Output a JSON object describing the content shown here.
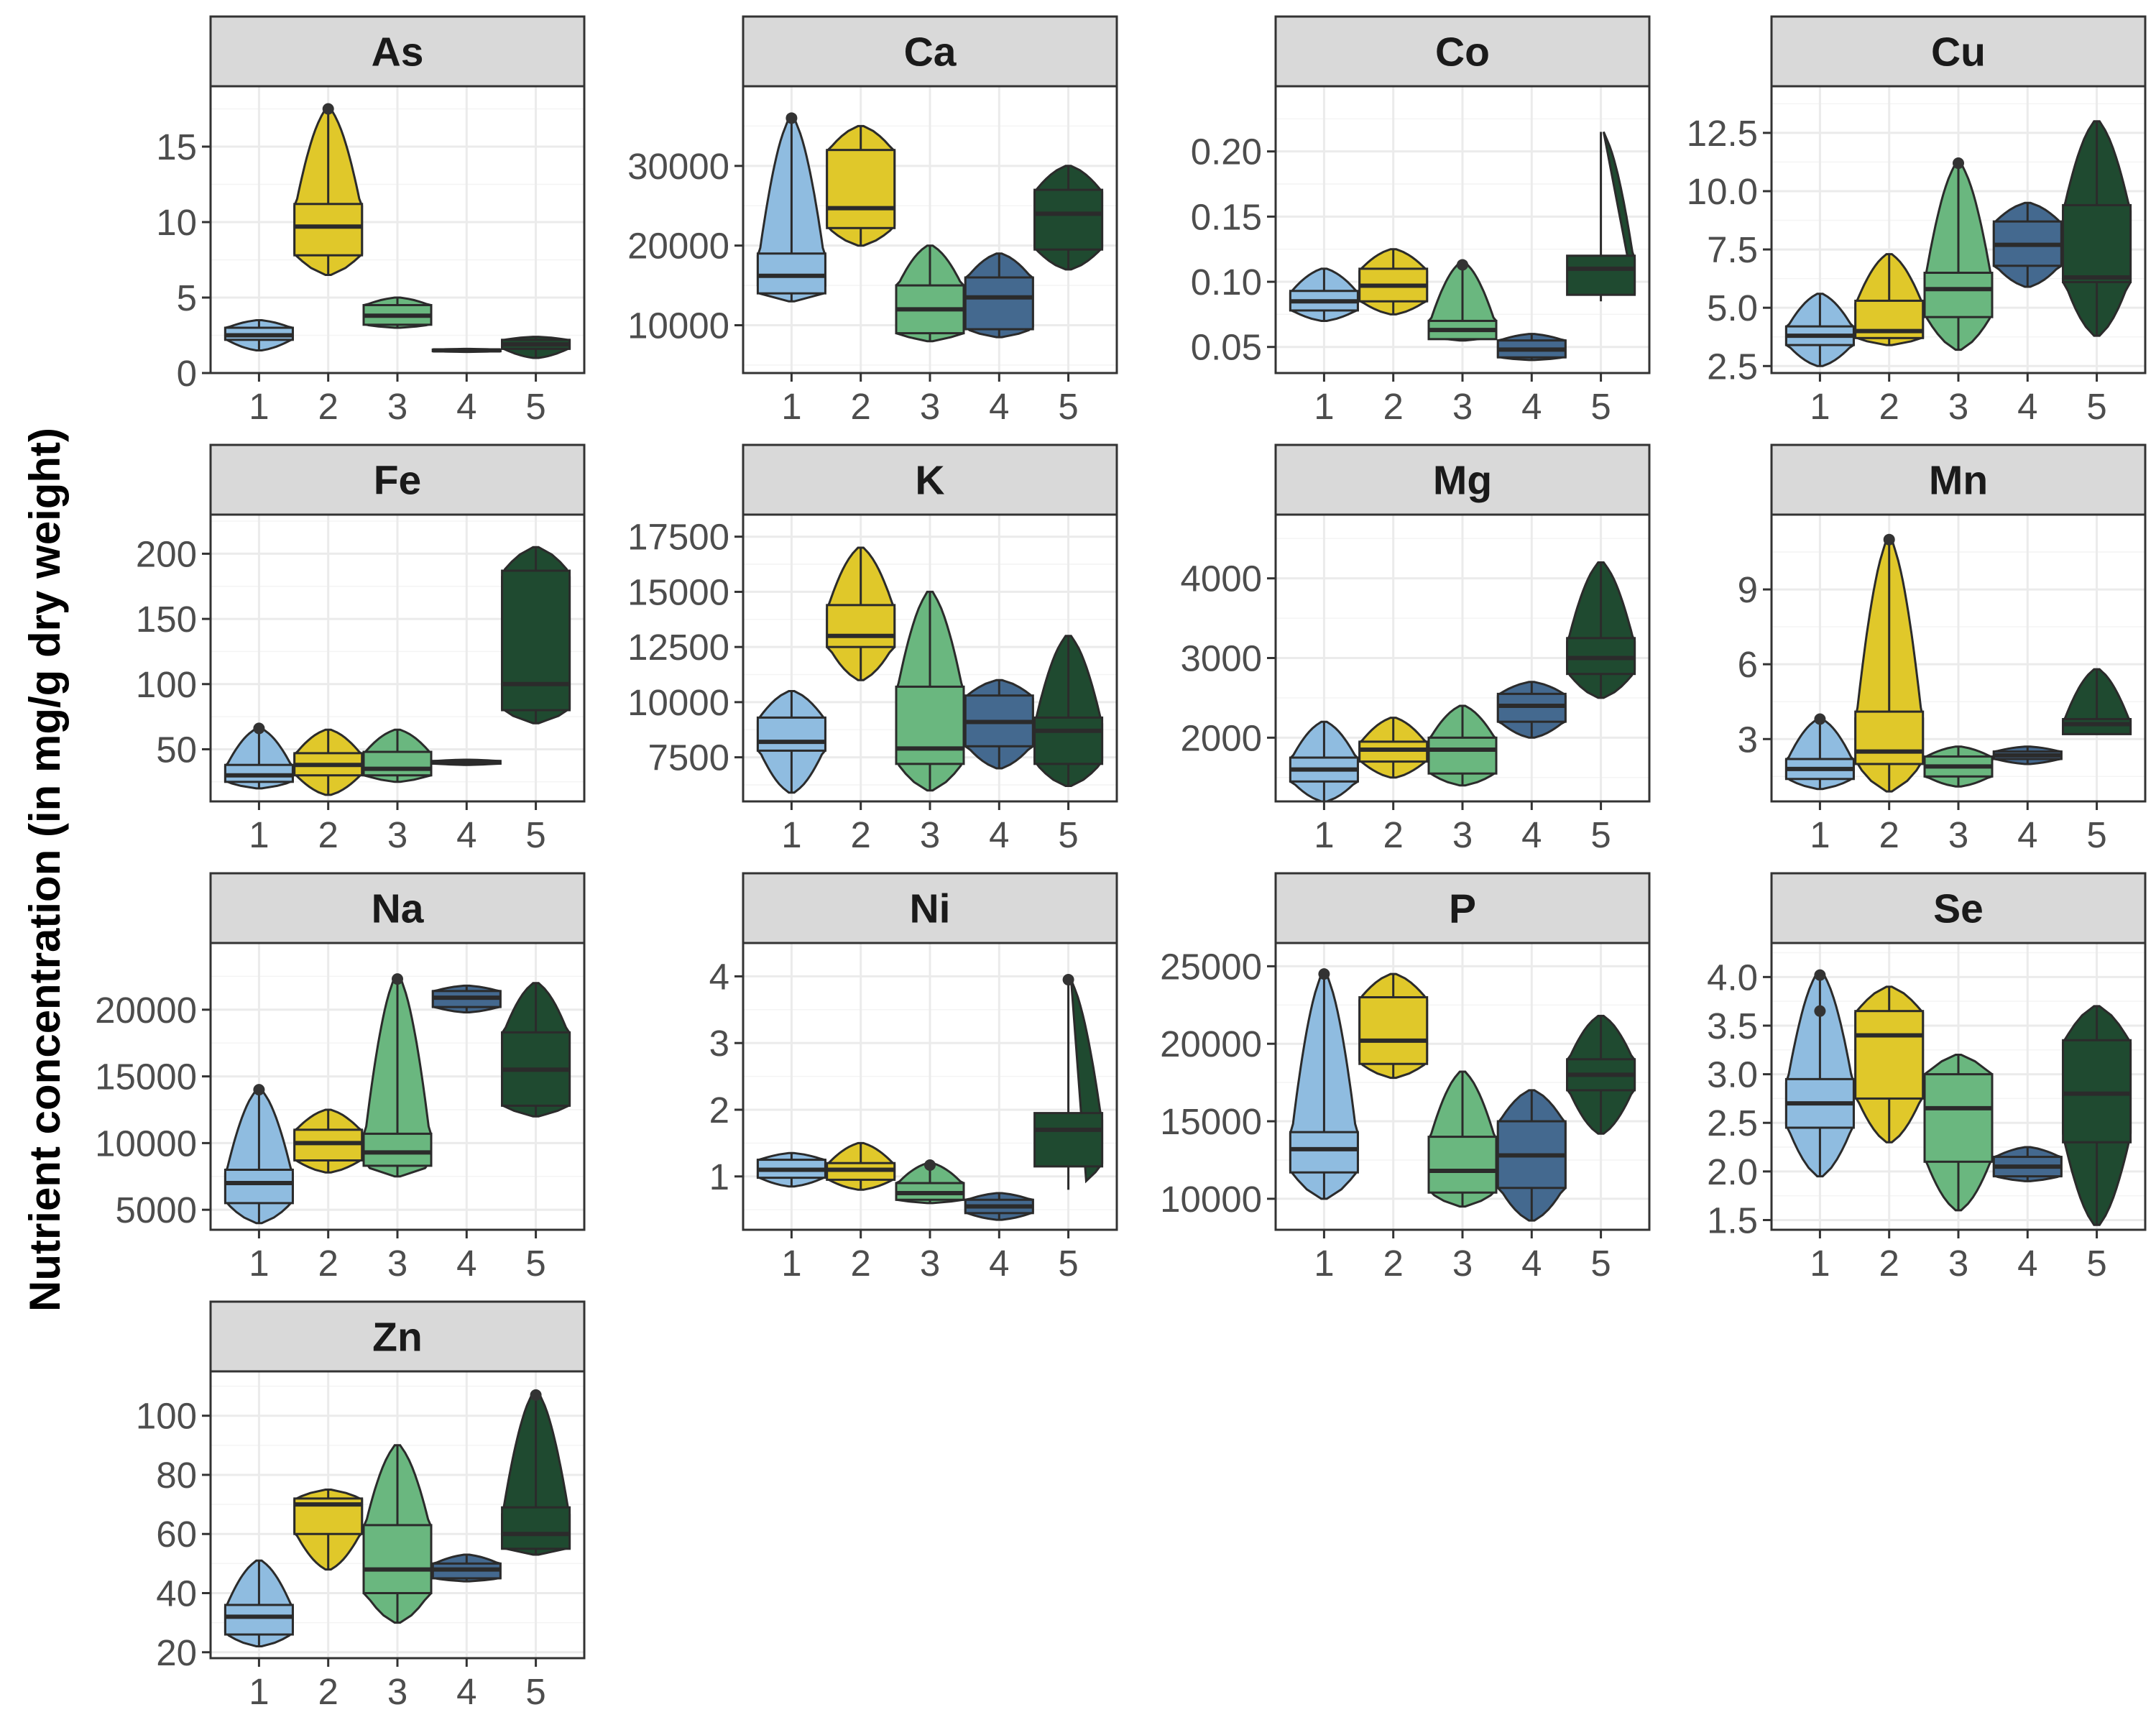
{
  "chart_data": {
    "type": "faceted violin + box plot",
    "ylabel": "Nutrient concentration (in mg/g dry weight)",
    "categories": [
      "1",
      "2",
      "3",
      "4",
      "5"
    ],
    "colors": [
      "#8fbce0",
      "#e0c82a",
      "#6ab77f",
      "#44698f",
      "#1f4a30"
    ],
    "panels": [
      {
        "name": "As",
        "ylim": [
          0,
          19
        ],
        "yticks": [
          "0",
          "5",
          "10",
          "15"
        ],
        "tick_values": [
          0,
          5,
          10,
          15
        ],
        "groups": [
          {
            "min": 1.5,
            "q1": 2.2,
            "median": 2.5,
            "q3": 3.0,
            "max": 3.5
          },
          {
            "min": 6.5,
            "q1": 7.8,
            "median": 9.7,
            "q3": 11.2,
            "max": 17.5,
            "outliers": [
              17.5
            ]
          },
          {
            "min": 3.0,
            "q1": 3.2,
            "median": 3.8,
            "q3": 4.5,
            "max": 5.0
          },
          {
            "min": 1.4,
            "q1": 1.45,
            "median": 1.5,
            "q3": 1.55,
            "max": 1.6
          },
          {
            "min": 1.0,
            "q1": 1.6,
            "median": 1.9,
            "q3": 2.2,
            "max": 2.4
          }
        ]
      },
      {
        "name": "Ca",
        "ylim": [
          4000,
          40000
        ],
        "yticks": [
          "10000",
          "20000",
          "30000"
        ],
        "tick_values": [
          10000,
          20000,
          30000
        ],
        "groups": [
          {
            "min": 13000,
            "q1": 14000,
            "median": 16200,
            "q3": 19000,
            "max": 36000,
            "outliers": [
              36000
            ]
          },
          {
            "min": 20000,
            "q1": 22200,
            "median": 24700,
            "q3": 32000,
            "max": 35000
          },
          {
            "min": 8000,
            "q1": 9000,
            "median": 12000,
            "q3": 15000,
            "max": 20000
          },
          {
            "min": 8500,
            "q1": 9500,
            "median": 13500,
            "q3": 16000,
            "max": 19000
          },
          {
            "min": 17000,
            "q1": 19500,
            "median": 24000,
            "q3": 27000,
            "max": 30000
          }
        ]
      },
      {
        "name": "Co",
        "ylim": [
          0.03,
          0.25
        ],
        "yticks": [
          "0.05",
          "0.10",
          "0.15",
          "0.20"
        ],
        "tick_values": [
          0.05,
          0.1,
          0.15,
          0.2
        ],
        "groups": [
          {
            "min": 0.07,
            "q1": 0.078,
            "median": 0.085,
            "q3": 0.093,
            "max": 0.11
          },
          {
            "min": 0.075,
            "q1": 0.085,
            "median": 0.097,
            "q3": 0.11,
            "max": 0.125
          },
          {
            "min": 0.055,
            "q1": 0.056,
            "median": 0.063,
            "q3": 0.07,
            "max": 0.115,
            "outliers": [
              0.113
            ]
          },
          {
            "min": 0.04,
            "q1": 0.042,
            "median": 0.048,
            "q3": 0.055,
            "max": 0.06
          },
          {
            "min": 0.085,
            "q1": 0.09,
            "median": 0.11,
            "q3": 0.12,
            "max": 0.215
          }
        ]
      },
      {
        "name": "Cu",
        "ylim": [
          2.2,
          14.5
        ],
        "yticks": [
          "2.5",
          "5.0",
          "7.5",
          "10.0",
          "12.5"
        ],
        "tick_values": [
          2.5,
          5.0,
          7.5,
          10.0,
          12.5
        ],
        "groups": [
          {
            "min": 2.5,
            "q1": 3.4,
            "median": 3.8,
            "q3": 4.2,
            "max": 5.6
          },
          {
            "min": 3.4,
            "q1": 3.7,
            "median": 4.0,
            "q3": 5.3,
            "max": 7.3
          },
          {
            "min": 3.2,
            "q1": 4.6,
            "median": 5.8,
            "q3": 6.5,
            "max": 11.2,
            "outliers": [
              11.2
            ]
          },
          {
            "min": 5.9,
            "q1": 6.8,
            "median": 7.7,
            "q3": 8.7,
            "max": 9.5
          },
          {
            "min": 3.8,
            "q1": 6.1,
            "median": 6.3,
            "q3": 9.4,
            "max": 13.0
          }
        ]
      },
      {
        "name": "Fe",
        "ylim": [
          10,
          230
        ],
        "yticks": [
          "50",
          "100",
          "150",
          "200"
        ],
        "tick_values": [
          50,
          100,
          150,
          200
        ],
        "groups": [
          {
            "min": 20,
            "q1": 25,
            "median": 30,
            "q3": 38,
            "max": 66,
            "outliers": [
              66
            ]
          },
          {
            "min": 15,
            "q1": 30,
            "median": 38,
            "q3": 47,
            "max": 65
          },
          {
            "min": 25,
            "q1": 30,
            "median": 35,
            "q3": 48,
            "max": 65
          },
          {
            "min": 38,
            "q1": 39,
            "median": 40,
            "q3": 41,
            "max": 42
          },
          {
            "min": 70,
            "q1": 80,
            "median": 100,
            "q3": 187,
            "max": 205
          }
        ]
      },
      {
        "name": "K",
        "ylim": [
          5500,
          18500
        ],
        "yticks": [
          "7500",
          "10000",
          "12500",
          "15000",
          "17500"
        ],
        "tick_values": [
          7500,
          10000,
          12500,
          15000,
          17500
        ],
        "groups": [
          {
            "min": 5900,
            "q1": 7800,
            "median": 8200,
            "q3": 9300,
            "max": 10500
          },
          {
            "min": 11000,
            "q1": 12500,
            "median": 13000,
            "q3": 14400,
            "max": 17000
          },
          {
            "min": 6000,
            "q1": 7200,
            "median": 7900,
            "q3": 10700,
            "max": 15000
          },
          {
            "min": 7000,
            "q1": 8000,
            "median": 9100,
            "q3": 10300,
            "max": 11000
          },
          {
            "min": 6200,
            "q1": 7200,
            "median": 8700,
            "q3": 9300,
            "max": 13000
          }
        ]
      },
      {
        "name": "Mg",
        "ylim": [
          1200,
          4800
        ],
        "yticks": [
          "2000",
          "3000",
          "4000"
        ],
        "tick_values": [
          2000,
          3000,
          4000
        ],
        "groups": [
          {
            "min": 1200,
            "q1": 1450,
            "median": 1600,
            "q3": 1750,
            "max": 2200
          },
          {
            "min": 1500,
            "q1": 1700,
            "median": 1850,
            "q3": 1950,
            "max": 2250
          },
          {
            "min": 1400,
            "q1": 1550,
            "median": 1850,
            "q3": 2000,
            "max": 2400
          },
          {
            "min": 2000,
            "q1": 2200,
            "median": 2400,
            "q3": 2550,
            "max": 2700
          },
          {
            "min": 2500,
            "q1": 2800,
            "median": 3000,
            "q3": 3250,
            "max": 4200
          }
        ]
      },
      {
        "name": "Mn",
        "ylim": [
          0.5,
          12.0
        ],
        "yticks": [
          "3",
          "6",
          "9"
        ],
        "tick_values": [
          3,
          6,
          9
        ],
        "groups": [
          {
            "min": 1.0,
            "q1": 1.4,
            "median": 1.8,
            "q3": 2.2,
            "max": 3.8,
            "outliers": [
              3.8
            ]
          },
          {
            "min": 0.9,
            "q1": 2.0,
            "median": 2.5,
            "q3": 4.1,
            "max": 11.0,
            "outliers": [
              11.0
            ]
          },
          {
            "min": 1.1,
            "q1": 1.5,
            "median": 1.9,
            "q3": 2.3,
            "max": 2.7
          },
          {
            "min": 2.0,
            "q1": 2.2,
            "median": 2.35,
            "q3": 2.5,
            "max": 2.7
          },
          {
            "min": 3.2,
            "q1": 3.2,
            "median": 3.6,
            "q3": 3.8,
            "max": 5.8
          }
        ]
      },
      {
        "name": "Na",
        "ylim": [
          3500,
          25000
        ],
        "yticks": [
          "5000",
          "10000",
          "15000",
          "20000"
        ],
        "tick_values": [
          5000,
          10000,
          15000,
          20000
        ],
        "groups": [
          {
            "min": 4000,
            "q1": 5500,
            "median": 7000,
            "q3": 8000,
            "max": 14000,
            "outliers": [
              14000
            ]
          },
          {
            "min": 7800,
            "q1": 8700,
            "median": 10000,
            "q3": 11000,
            "max": 12500
          },
          {
            "min": 7500,
            "q1": 8300,
            "median": 9300,
            "q3": 10700,
            "max": 22500,
            "outliers": [
              22300
            ]
          },
          {
            "min": 19800,
            "q1": 20200,
            "median": 20900,
            "q3": 21400,
            "max": 21800
          },
          {
            "min": 12000,
            "q1": 12800,
            "median": 15500,
            "q3": 18300,
            "max": 22000
          }
        ]
      },
      {
        "name": "Ni",
        "ylim": [
          0.2,
          4.5
        ],
        "yticks": [
          "1",
          "2",
          "3",
          "4"
        ],
        "tick_values": [
          1,
          2,
          3,
          4
        ],
        "groups": [
          {
            "min": 0.85,
            "q1": 0.98,
            "median": 1.1,
            "q3": 1.25,
            "max": 1.35
          },
          {
            "min": 0.8,
            "q1": 0.95,
            "median": 1.1,
            "q3": 1.2,
            "max": 1.5
          },
          {
            "min": 0.6,
            "q1": 0.65,
            "median": 0.75,
            "q3": 0.9,
            "max": 1.2,
            "outliers": [
              1.17
            ]
          },
          {
            "min": 0.35,
            "q1": 0.45,
            "median": 0.55,
            "q3": 0.65,
            "max": 0.75
          },
          {
            "min": 0.8,
            "q1": 1.15,
            "median": 1.7,
            "q3": 1.95,
            "max": 3.95,
            "outliers": [
              3.95
            ]
          }
        ]
      },
      {
        "name": "P",
        "ylim": [
          8000,
          26500
        ],
        "yticks": [
          "10000",
          "15000",
          "20000",
          "25000"
        ],
        "tick_values": [
          10000,
          15000,
          20000,
          25000
        ],
        "groups": [
          {
            "min": 10000,
            "q1": 11700,
            "median": 13200,
            "q3": 14300,
            "max": 24500,
            "outliers": [
              24500
            ]
          },
          {
            "min": 17800,
            "q1": 18700,
            "median": 20200,
            "q3": 23000,
            "max": 24500
          },
          {
            "min": 9500,
            "q1": 10400,
            "median": 11800,
            "q3": 14000,
            "max": 18200
          },
          {
            "min": 8600,
            "q1": 10700,
            "median": 12800,
            "q3": 15000,
            "max": 17000
          },
          {
            "min": 14200,
            "q1": 17000,
            "median": 18000,
            "q3": 19000,
            "max": 21800
          }
        ]
      },
      {
        "name": "Se",
        "ylim": [
          1.4,
          4.35
        ],
        "yticks": [
          "1.5",
          "2.0",
          "2.5",
          "3.0",
          "3.5",
          "4.0"
        ],
        "tick_values": [
          1.5,
          2.0,
          2.5,
          3.0,
          3.5,
          4.0
        ],
        "groups": [
          {
            "min": 1.95,
            "q1": 2.45,
            "median": 2.7,
            "q3": 2.95,
            "max": 4.05,
            "outliers": [
              4.02,
              3.65
            ]
          },
          {
            "min": 2.3,
            "q1": 2.75,
            "median": 3.4,
            "q3": 3.65,
            "max": 3.9
          },
          {
            "min": 1.6,
            "q1": 2.1,
            "median": 2.65,
            "q3": 3.0,
            "max": 3.2
          },
          {
            "min": 1.9,
            "q1": 1.95,
            "median": 2.05,
            "q3": 2.15,
            "max": 2.25
          },
          {
            "min": 1.45,
            "q1": 2.3,
            "median": 2.8,
            "q3": 3.35,
            "max": 3.7
          }
        ]
      },
      {
        "name": "Zn",
        "ylim": [
          18,
          115
        ],
        "yticks": [
          "20",
          "40",
          "60",
          "80",
          "100"
        ],
        "tick_values": [
          20,
          40,
          60,
          80,
          100
        ],
        "groups": [
          {
            "min": 22,
            "q1": 26,
            "median": 32,
            "q3": 36,
            "max": 51
          },
          {
            "min": 48,
            "q1": 60,
            "median": 70,
            "q3": 72,
            "max": 75
          },
          {
            "min": 30,
            "q1": 40,
            "median": 48,
            "q3": 63,
            "max": 90
          },
          {
            "min": 44,
            "q1": 45,
            "median": 48,
            "q3": 50,
            "max": 53
          },
          {
            "min": 53,
            "q1": 55,
            "median": 60,
            "q3": 69,
            "max": 108,
            "outliers": [
              107
            ]
          }
        ]
      }
    ]
  }
}
